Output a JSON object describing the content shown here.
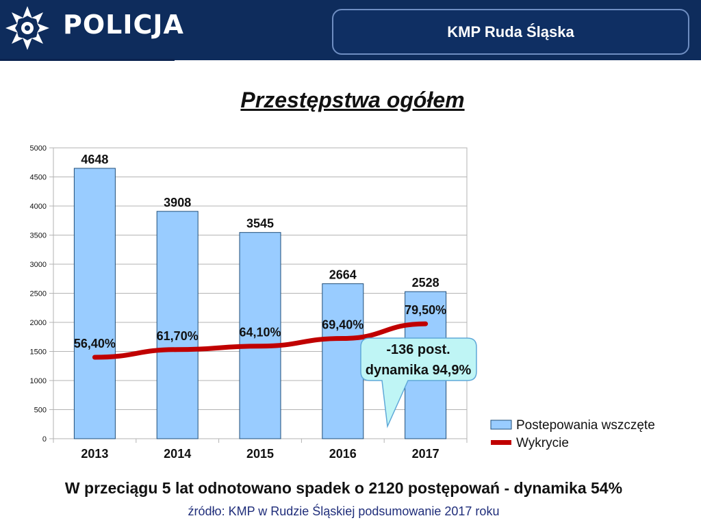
{
  "header": {
    "logo_text": "POLICJA",
    "unit": "KMP Ruda Śląska",
    "background_color": "#0e2c5c"
  },
  "chart_data": {
    "type": "bar",
    "title": "Przestępstwa ogółem",
    "categories": [
      "2013",
      "2014",
      "2015",
      "2016",
      "2017"
    ],
    "series": [
      {
        "name": "Postepowania wszczęte",
        "kind": "bar",
        "color": "#99ccff",
        "values": [
          4648,
          3908,
          3545,
          2664,
          2528
        ],
        "labels": [
          "4648",
          "3908",
          "3545",
          "2664",
          "2528"
        ]
      },
      {
        "name": "Wykrycie",
        "kind": "line",
        "color": "#c00000",
        "values": [
          56.4,
          61.7,
          64.1,
          69.4,
          79.5
        ],
        "labels": [
          "56,40%",
          "61,70%",
          "64,10%",
          "69,40%",
          "79,50%"
        ]
      }
    ],
    "y_ticks": [
      "0",
      "500",
      "1000",
      "1500",
      "2000",
      "2500",
      "3000",
      "3500",
      "4000",
      "4500",
      "5000"
    ],
    "ylim": [
      0,
      5000
    ],
    "grid": true,
    "legend": "right",
    "callout": {
      "line1": "-136 post.",
      "line2": "dynamika 94,9%",
      "color": "#bff5f5"
    }
  },
  "summary": "W przeciągu 5 lat odnotowano spadek o 2120 postępowań - dynamika 54%",
  "source": "źródło: KMP w Rudzie Śląskiej podsumowanie 2017 roku"
}
